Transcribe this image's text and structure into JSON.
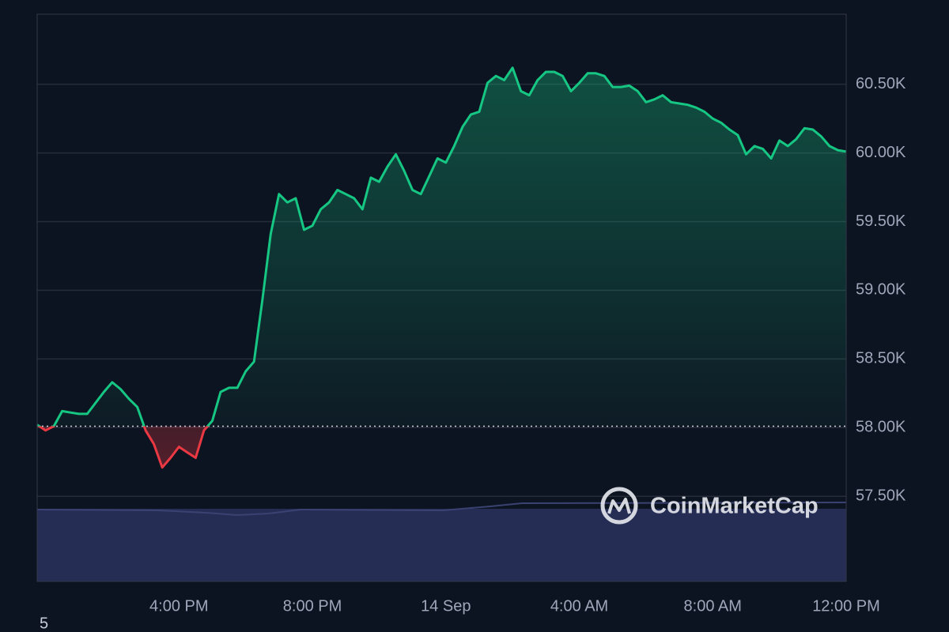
{
  "chart_data": {
    "type": "line",
    "categories": [
      null,
      null,
      null,
      null,
      null,
      null,
      null,
      null,
      null,
      null,
      null,
      null,
      null,
      null,
      null,
      null,
      null,
      "4:00 PM",
      null,
      null,
      null,
      null,
      null,
      null,
      null,
      null,
      null,
      null,
      null,
      null,
      null,
      null,
      null,
      "8:00 PM",
      null,
      null,
      null,
      null,
      null,
      null,
      null,
      null,
      null,
      null,
      null,
      null,
      null,
      null,
      null,
      "14 Sep",
      null,
      null,
      null,
      null,
      null,
      null,
      null,
      null,
      null,
      null,
      null,
      null,
      null,
      null,
      null,
      "4:00 AM",
      null,
      null,
      null,
      null,
      null,
      null,
      null,
      null,
      null,
      null,
      null,
      null,
      null,
      null,
      null,
      "8:00 AM",
      null,
      null,
      null,
      null,
      null,
      null,
      null,
      null,
      null,
      null,
      null,
      null,
      null,
      null,
      null,
      "12:00 PM"
    ],
    "values": [
      58020,
      57980,
      58010,
      58120,
      58110,
      58100,
      58100,
      58180,
      58260,
      58330,
      58280,
      58210,
      58150,
      57980,
      57880,
      57710,
      57780,
      57860,
      57820,
      57780,
      57980,
      58050,
      58260,
      58290,
      58290,
      58410,
      58480,
      58930,
      59410,
      59700,
      59640,
      59670,
      59440,
      59470,
      59590,
      59640,
      59730,
      59700,
      59670,
      59590,
      59820,
      59790,
      59900,
      59990,
      59870,
      59730,
      59700,
      59830,
      59960,
      59930,
      60050,
      60190,
      60280,
      60300,
      60510,
      60560,
      60530,
      60620,
      60450,
      60420,
      60530,
      60590,
      60590,
      60560,
      60450,
      60510,
      60580,
      60580,
      60560,
      60480,
      60480,
      60490,
      60450,
      60370,
      60390,
      60420,
      60370,
      60360,
      60350,
      60330,
      60300,
      60250,
      60220,
      60170,
      60130,
      59990,
      60050,
      60030,
      59960,
      60090,
      60050,
      60100,
      60180,
      60170,
      60120,
      60050,
      60020,
      60010
    ],
    "baseline": 58010,
    "color_up": "#16c784",
    "color_down": "#ea3943",
    "ylim": [
      56880,
      61010
    ],
    "yticks": [
      {
        "value": 57500,
        "label": "57.50K"
      },
      {
        "value": 58000,
        "label": "58.00K"
      },
      {
        "value": 58500,
        "label": "58.50K"
      },
      {
        "value": 59000,
        "label": "59.00K"
      },
      {
        "value": 59500,
        "label": "59.50K"
      },
      {
        "value": 60000,
        "label": "60.00K"
      },
      {
        "value": 60500,
        "label": "60.50K"
      }
    ],
    "grid": true,
    "watermark": "CoinMarketCap",
    "footnote": "5"
  }
}
